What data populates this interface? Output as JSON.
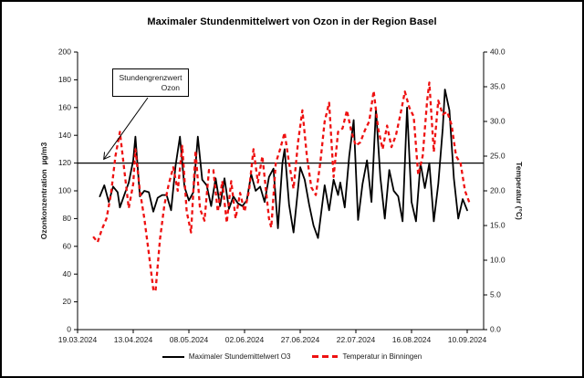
{
  "title": "Maximaler Stundenmittelwert von Ozon in der Region Basel",
  "annotation": {
    "line1": "Stundengrenzwert",
    "line2": "Ozon"
  },
  "legend": {
    "items": [
      {
        "label": "Maximaler Stundemittelwert O3",
        "color": "#000000",
        "style": "solid"
      },
      {
        "label": "Temperatur in Binningen",
        "color": "#ee1111",
        "style": "dashed"
      }
    ]
  },
  "chart_data": {
    "type": "line",
    "title": "Maximaler Stundenmittelwert von Ozon in der Region Basel",
    "grid": false,
    "legend_position": "bottom",
    "x_axis": {
      "tick_labels": [
        "19.03.2024",
        "13.04.2024",
        "08.05.2024",
        "02.06.2024",
        "27.06.2024",
        "22.07.2024",
        "16.08.2024",
        "10.09.2024"
      ],
      "tick_days": [
        0,
        25,
        50,
        75,
        100,
        125,
        150,
        175
      ],
      "unit": "day offset from 19.03.2024"
    },
    "y_left": {
      "label": "Ozonkonzentration  µg/m3",
      "min": 0,
      "max": 200,
      "tick_labels": [
        "0",
        "20",
        "40",
        "60",
        "80",
        "100",
        "120",
        "140",
        "160",
        "180",
        "200"
      ]
    },
    "y_right": {
      "label": "Temperatur (°C)",
      "min": 0,
      "max": 40,
      "tick_labels": [
        "0.0",
        "5.0",
        "10.0",
        "15.0",
        "20.0",
        "25.0",
        "30.0",
        "35.0",
        "40.0"
      ]
    },
    "limit_line": {
      "value": 120,
      "axis": "left",
      "color": "#000000"
    },
    "series": [
      {
        "name": "Maximaler Stundemittelwert O3",
        "axis": "left",
        "color": "#000000",
        "style": "solid",
        "points": [
          [
            10,
            96
          ],
          [
            12,
            104
          ],
          [
            14,
            92
          ],
          [
            16,
            103
          ],
          [
            18,
            99
          ],
          [
            19,
            88
          ],
          [
            21,
            97
          ],
          [
            23,
            106
          ],
          [
            25,
            122
          ],
          [
            26,
            139
          ],
          [
            28,
            96
          ],
          [
            30,
            100
          ],
          [
            32,
            99
          ],
          [
            34,
            85
          ],
          [
            36,
            95
          ],
          [
            38,
            97
          ],
          [
            40,
            97
          ],
          [
            42,
            86
          ],
          [
            44,
            118
          ],
          [
            46,
            139
          ],
          [
            48,
            103
          ],
          [
            50,
            93
          ],
          [
            52,
            99
          ],
          [
            54,
            139
          ],
          [
            56,
            108
          ],
          [
            58,
            104
          ],
          [
            60,
            89
          ],
          [
            62,
            109
          ],
          [
            64,
            89
          ],
          [
            66,
            109
          ],
          [
            68,
            87
          ],
          [
            70,
            96
          ],
          [
            72,
            91
          ],
          [
            74,
            89
          ],
          [
            76,
            93
          ],
          [
            78,
            112
          ],
          [
            80,
            100
          ],
          [
            82,
            103
          ],
          [
            84,
            92
          ],
          [
            86,
            110
          ],
          [
            88,
            116
          ],
          [
            90,
            73
          ],
          [
            92,
            120
          ],
          [
            93,
            130
          ],
          [
            95,
            90
          ],
          [
            97,
            70
          ],
          [
            100,
            117
          ],
          [
            102,
            108
          ],
          [
            104,
            90
          ],
          [
            106,
            75
          ],
          [
            108,
            66
          ],
          [
            111,
            104
          ],
          [
            113,
            86
          ],
          [
            115,
            108
          ],
          [
            117,
            97
          ],
          [
            118,
            106
          ],
          [
            120,
            88
          ],
          [
            122,
            125
          ],
          [
            124,
            151
          ],
          [
            126,
            79
          ],
          [
            128,
            105
          ],
          [
            130,
            122
          ],
          [
            132,
            92
          ],
          [
            134,
            159
          ],
          [
            136,
            110
          ],
          [
            138,
            80
          ],
          [
            140,
            115
          ],
          [
            142,
            100
          ],
          [
            144,
            96
          ],
          [
            146,
            78
          ],
          [
            148,
            160
          ],
          [
            150,
            92
          ],
          [
            152,
            78
          ],
          [
            154,
            120
          ],
          [
            156,
            102
          ],
          [
            158,
            120
          ],
          [
            160,
            78
          ],
          [
            162,
            105
          ],
          [
            164,
            145
          ],
          [
            165,
            173
          ],
          [
            167,
            158
          ],
          [
            169,
            109
          ],
          [
            171,
            80
          ],
          [
            173,
            94
          ],
          [
            175,
            86
          ]
        ]
      },
      {
        "name": "Temperatur in Binningen",
        "axis": "right",
        "color": "#ee1111",
        "style": "dashed",
        "points": [
          [
            7,
            13.4
          ],
          [
            9,
            12.6
          ],
          [
            11,
            14.5
          ],
          [
            13,
            16
          ],
          [
            15,
            19.5
          ],
          [
            17,
            25
          ],
          [
            19,
            28.5
          ],
          [
            21,
            23
          ],
          [
            23,
            17.5
          ],
          [
            25,
            21
          ],
          [
            26,
            26
          ],
          [
            28,
            20
          ],
          [
            30,
            16
          ],
          [
            32,
            11
          ],
          [
            34,
            5.8
          ],
          [
            35,
            5.5
          ],
          [
            37,
            13
          ],
          [
            39,
            18
          ],
          [
            41,
            21
          ],
          [
            43,
            23.4
          ],
          [
            45,
            20
          ],
          [
            47,
            26.5
          ],
          [
            49,
            17
          ],
          [
            51,
            14
          ],
          [
            53,
            25.8
          ],
          [
            55,
            17.4
          ],
          [
            57,
            15.7
          ],
          [
            59,
            23
          ],
          [
            61,
            23
          ],
          [
            63,
            17
          ],
          [
            65,
            21.4
          ],
          [
            67,
            15.4
          ],
          [
            69,
            21.4
          ],
          [
            71,
            16
          ],
          [
            73,
            19.7
          ],
          [
            75,
            17
          ],
          [
            77,
            20
          ],
          [
            79,
            26
          ],
          [
            81,
            21.2
          ],
          [
            83,
            25
          ],
          [
            86,
            16
          ],
          [
            87,
            14.7
          ],
          [
            89,
            24
          ],
          [
            91,
            26
          ],
          [
            93,
            28.4
          ],
          [
            95,
            24
          ],
          [
            97,
            20.3
          ],
          [
            99,
            27
          ],
          [
            101,
            31.6
          ],
          [
            103,
            25
          ],
          [
            105,
            20.5
          ],
          [
            107,
            19.4
          ],
          [
            109,
            24
          ],
          [
            111,
            30
          ],
          [
            113,
            32.7
          ],
          [
            115,
            22
          ],
          [
            117,
            28.5
          ],
          [
            119,
            29
          ],
          [
            121,
            31.6
          ],
          [
            123,
            28.5
          ],
          [
            125,
            26.5
          ],
          [
            127,
            27
          ],
          [
            129,
            28.7
          ],
          [
            131,
            30
          ],
          [
            133,
            34.4
          ],
          [
            135,
            29
          ],
          [
            137,
            26
          ],
          [
            139,
            29.4
          ],
          [
            141,
            26.3
          ],
          [
            143,
            28
          ],
          [
            145,
            31
          ],
          [
            147,
            34.3
          ],
          [
            149,
            32
          ],
          [
            151,
            30.7
          ],
          [
            153,
            22.3
          ],
          [
            155,
            25
          ],
          [
            157,
            33
          ],
          [
            158,
            35.6
          ],
          [
            160,
            25.6
          ],
          [
            162,
            33
          ],
          [
            164,
            31
          ],
          [
            166,
            31.4
          ],
          [
            168,
            29.5
          ],
          [
            170,
            25
          ],
          [
            172,
            24
          ],
          [
            174,
            20
          ],
          [
            176,
            18.3
          ]
        ]
      }
    ]
  }
}
